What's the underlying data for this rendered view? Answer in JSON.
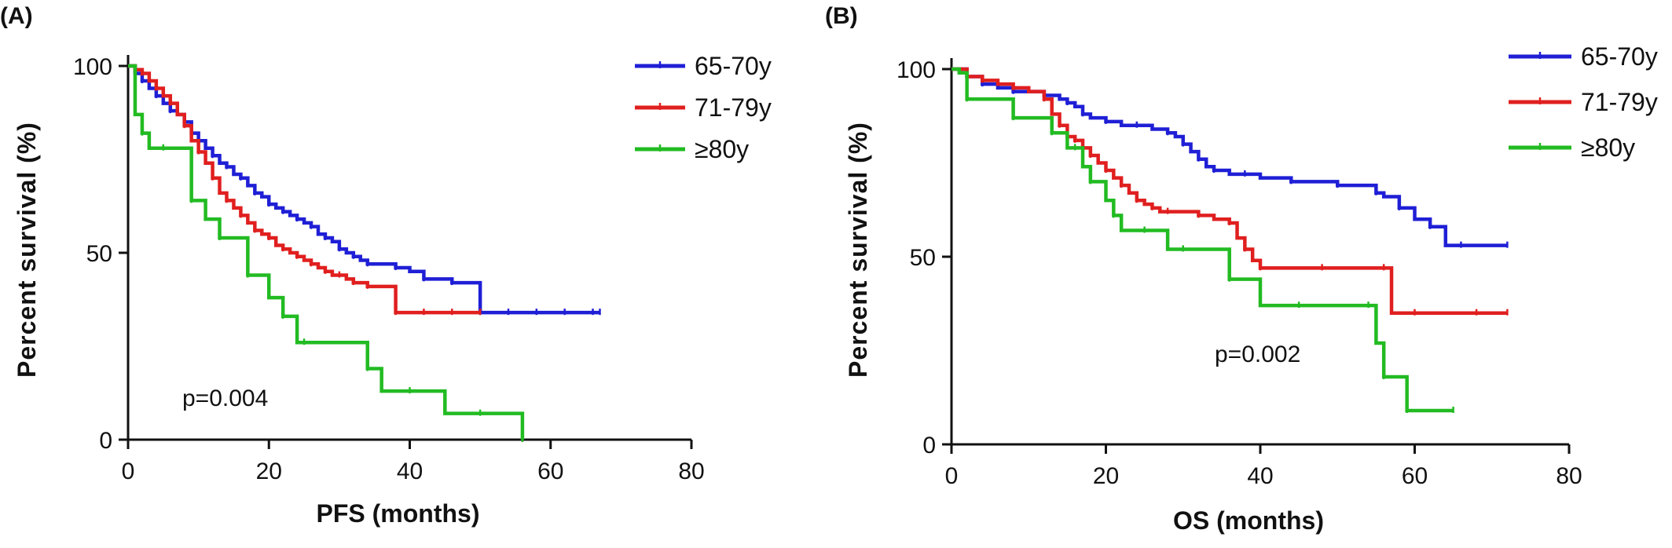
{
  "chart_data": [
    {
      "panel_label": "(A)",
      "type": "line",
      "subtype": "kaplan-meier step",
      "xlabel": "PFS (months)",
      "ylabel": "Percent survival (%)",
      "xlim": [
        0,
        80
      ],
      "ylim": [
        0,
        100
      ],
      "xticks": [
        "0",
        "20",
        "40",
        "60",
        "80"
      ],
      "yticks": [
        "0",
        "50",
        "100"
      ],
      "grid": false,
      "legend_position": "top-right",
      "annotation": "p=0.004",
      "series": [
        {
          "name": "65-70y",
          "color": "#1f1fd6",
          "x": [
            0,
            1,
            2,
            3,
            4,
            5,
            6,
            7,
            8,
            9,
            10,
            11,
            12,
            13,
            14,
            15,
            16,
            17,
            18,
            19,
            20,
            21,
            22,
            23,
            24,
            25,
            26,
            27,
            28,
            29,
            30,
            31,
            32,
            33,
            34,
            36,
            38,
            40,
            42,
            44,
            46,
            48,
            50,
            52,
            54,
            56,
            58,
            60,
            62,
            64,
            66,
            67
          ],
          "y": [
            100,
            98,
            96,
            94,
            92,
            90,
            88,
            87,
            85,
            82,
            80,
            78,
            76,
            74,
            73,
            71,
            70,
            68,
            66,
            65,
            63,
            62,
            61,
            60,
            59,
            58,
            57,
            55,
            54,
            53,
            51,
            50,
            49,
            48,
            47,
            47,
            46,
            45,
            43,
            43,
            42,
            42,
            34,
            34,
            34,
            34,
            34,
            34,
            34,
            34,
            34,
            34
          ]
        },
        {
          "name": "71-79y",
          "color": "#e01f1f",
          "x": [
            0,
            1,
            2,
            3,
            4,
            5,
            6,
            7,
            8,
            9,
            10,
            11,
            12,
            13,
            14,
            15,
            16,
            17,
            18,
            19,
            20,
            21,
            22,
            23,
            24,
            25,
            26,
            27,
            28,
            29,
            30,
            31,
            32,
            33,
            34,
            36,
            38,
            40,
            42,
            44,
            46,
            48,
            50
          ],
          "y": [
            100,
            99,
            98,
            96,
            94,
            92,
            90,
            87,
            84,
            80,
            77,
            74,
            70,
            66,
            64,
            62,
            60,
            58,
            56,
            55,
            54,
            52,
            51,
            50,
            49,
            48,
            47,
            46,
            45,
            44,
            44,
            43,
            42,
            42,
            41,
            41,
            34,
            34,
            34,
            34,
            34,
            34,
            34
          ]
        },
        {
          "name": "≥80y",
          "color": "#22bb22",
          "x": [
            0,
            1,
            2,
            3,
            5,
            7,
            9,
            11,
            13,
            15,
            17,
            20,
            22,
            24,
            25,
            30,
            34,
            36,
            40,
            45,
            50,
            54,
            56
          ],
          "y": [
            100,
            87,
            82,
            78,
            78,
            78,
            64,
            59,
            54,
            54,
            44,
            38,
            33,
            26,
            26,
            26,
            19,
            13,
            13,
            7,
            7,
            7,
            0
          ]
        }
      ]
    },
    {
      "panel_label": "(B)",
      "type": "line",
      "subtype": "kaplan-meier step",
      "xlabel": "OS (months)",
      "ylabel": "Percent survival (%)",
      "xlim": [
        0,
        80
      ],
      "ylim": [
        0,
        100
      ],
      "xticks": [
        "0",
        "20",
        "40",
        "60",
        "80"
      ],
      "yticks": [
        "0",
        "50",
        "100"
      ],
      "grid": false,
      "legend_position": "top-right",
      "annotation": "p=0.002",
      "series": [
        {
          "name": "65-70y",
          "color": "#1f1fd6",
          "x": [
            0,
            2,
            4,
            6,
            8,
            10,
            12,
            14,
            15,
            16,
            17,
            18,
            20,
            22,
            24,
            26,
            28,
            29,
            30,
            31,
            32,
            33,
            34,
            36,
            38,
            40,
            44,
            48,
            50,
            54,
            55,
            56,
            58,
            60,
            62,
            64,
            66,
            70,
            72
          ],
          "y": [
            100,
            98,
            96,
            95,
            94,
            94,
            93,
            92,
            91,
            90,
            88,
            87,
            86,
            85,
            85,
            84,
            83,
            82,
            80,
            78,
            76,
            74,
            73,
            72,
            72,
            71,
            70,
            70,
            69,
            69,
            67,
            66,
            63,
            60,
            58,
            53,
            53,
            53,
            53
          ]
        },
        {
          "name": "71-79y",
          "color": "#e01f1f",
          "x": [
            0,
            2,
            4,
            6,
            8,
            10,
            12,
            13,
            14,
            15,
            16,
            17,
            18,
            19,
            20,
            21,
            22,
            23,
            24,
            25,
            26,
            27,
            28,
            30,
            32,
            34,
            36,
            37,
            38,
            39,
            40,
            44,
            48,
            52,
            56,
            57,
            60,
            64,
            68,
            72
          ],
          "y": [
            100,
            98,
            97,
            96,
            95,
            94,
            92,
            88,
            85,
            82,
            81,
            79,
            77,
            75,
            73,
            71,
            69,
            67,
            65,
            64,
            63,
            62,
            62,
            62,
            61,
            60,
            59,
            55,
            52,
            49,
            47,
            47,
            47,
            47,
            47,
            35,
            35,
            35,
            35,
            35
          ]
        },
        {
          "name": "≥80y",
          "color": "#22bb22",
          "x": [
            0,
            1,
            2,
            5,
            8,
            11,
            13,
            15,
            16,
            17,
            18,
            20,
            21,
            22,
            25,
            28,
            30,
            33,
            36,
            40,
            45,
            50,
            54,
            55,
            56,
            57,
            59,
            62,
            65
          ],
          "y": [
            100,
            99,
            92,
            92,
            87,
            87,
            83,
            79,
            79,
            74,
            70,
            65,
            61,
            57,
            57,
            52,
            52,
            52,
            44,
            37,
            37,
            37,
            37,
            27,
            18,
            18,
            9,
            9,
            9
          ]
        }
      ]
    }
  ]
}
